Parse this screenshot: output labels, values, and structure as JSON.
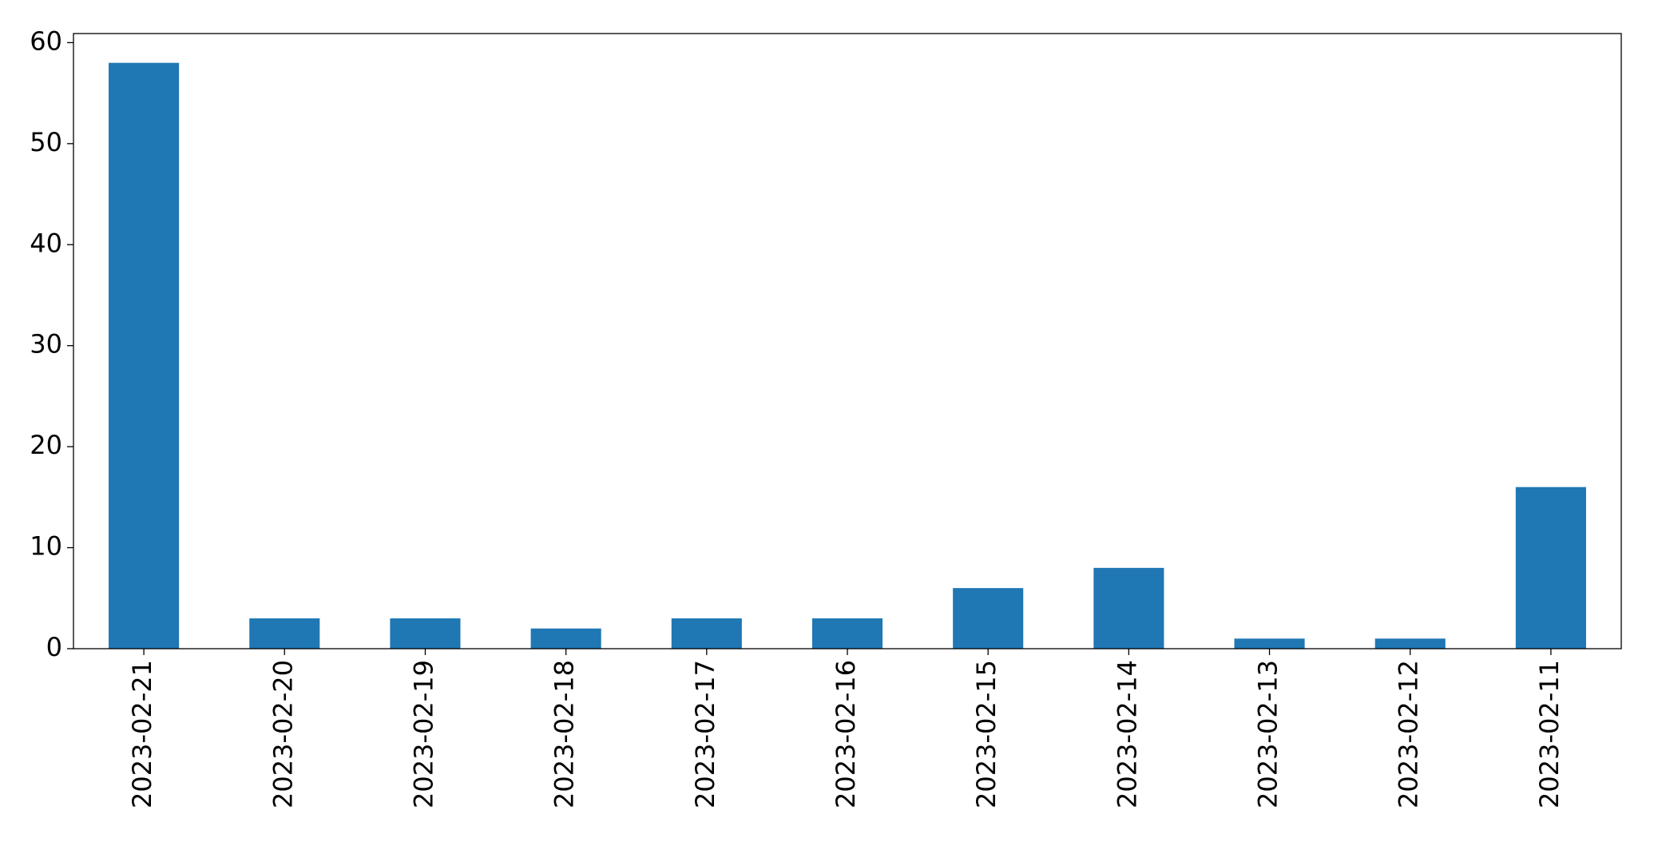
{
  "chart_data": {
    "type": "bar",
    "categories": [
      "2023-02-21",
      "2023-02-20",
      "2023-02-19",
      "2023-02-18",
      "2023-02-17",
      "2023-02-16",
      "2023-02-15",
      "2023-02-14",
      "2023-02-13",
      "2023-02-12",
      "2023-02-11"
    ],
    "values": [
      58,
      3,
      3,
      2,
      3,
      3,
      6,
      8,
      1,
      1,
      16
    ],
    "color": "#1f77b4",
    "ylim": [
      0,
      60.9
    ],
    "yticks": [
      0,
      10,
      20,
      30,
      40,
      50,
      60
    ],
    "grid": false
  }
}
